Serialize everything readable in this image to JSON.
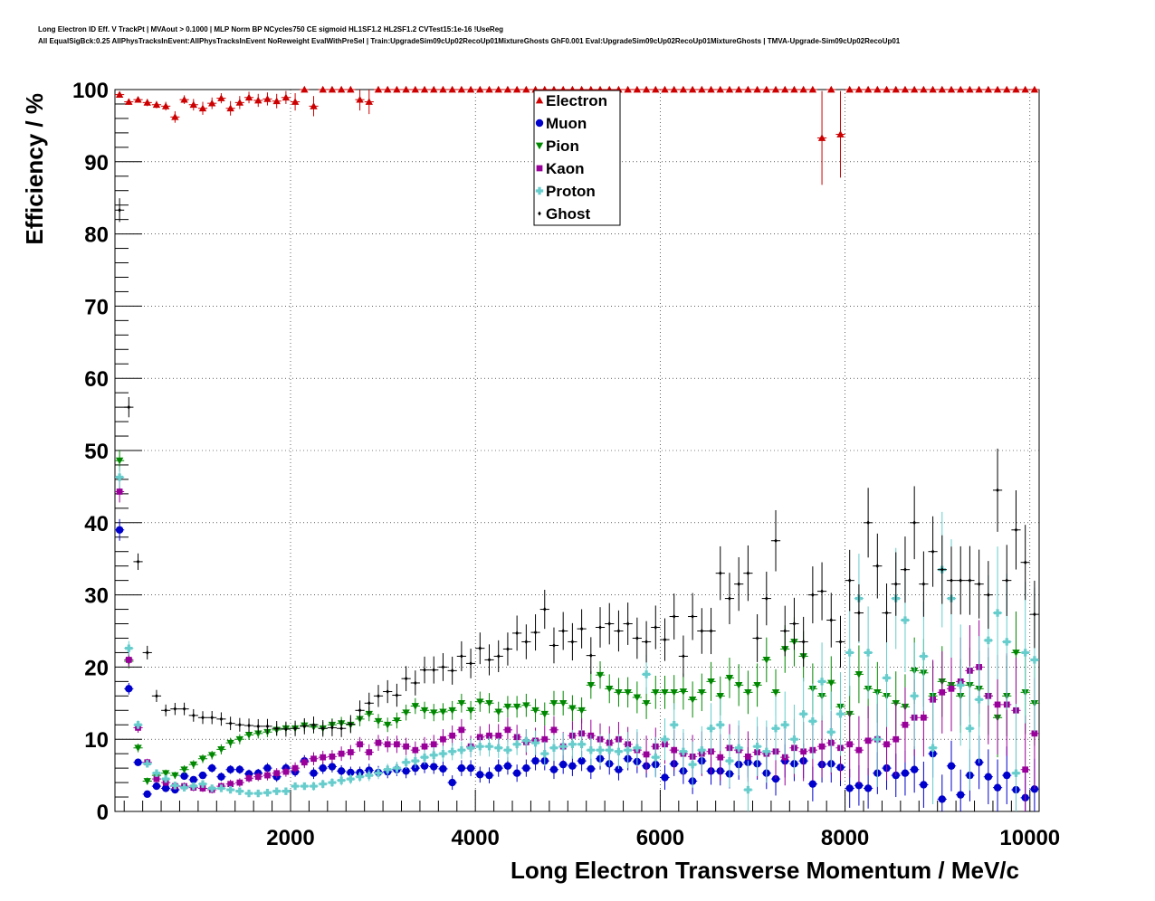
{
  "chart_data": {
    "type": "scatter",
    "title_lines": [
      "Long Electron ID Eff. V TrackPt | MVAout > 0.1000 | MLP Norm BP NCycles750 CE sigmoid HL1SF1.2 HL2SF1.2 CVTest15:1e-16 !UseReg",
      "All EqualSigBck:0.25 AllPhysTracksInEvent:AllPhysTracksInEvent NoReweight EvalWithPreSel | Train:UpgradeSim09cUp02RecoUp01MixtureGhosts GhF0.001 Eval:UpgradeSim09cUp02RecoUp01MixtureGhosts | TMVA-Upgrade-Sim09cUp02RecoUp01"
    ],
    "xlabel": "Long Electron Transverse Momentum / MeV/c",
    "ylabel": "Efficiency / %",
    "xlim": [
      100,
      10100
    ],
    "ylim": [
      0,
      100
    ],
    "x_ticks": [
      "2000",
      "4000",
      "6000",
      "8000",
      "10000"
    ],
    "y_ticks": [
      "0",
      "10",
      "20",
      "30",
      "40",
      "50",
      "60",
      "70",
      "80",
      "90",
      "100"
    ],
    "grid": true,
    "legend_position": "top-center",
    "x": [
      150,
      250,
      350,
      450,
      550,
      650,
      750,
      850,
      950,
      1050,
      1150,
      1250,
      1350,
      1450,
      1550,
      1650,
      1750,
      1850,
      1950,
      2050,
      2150,
      2250,
      2350,
      2450,
      2550,
      2650,
      2750,
      2850,
      2950,
      3050,
      3150,
      3250,
      3350,
      3450,
      3550,
      3650,
      3750,
      3850,
      3950,
      4050,
      4150,
      4250,
      4350,
      4450,
      4550,
      4650,
      4750,
      4850,
      4950,
      5050,
      5150,
      5250,
      5350,
      5450,
      5550,
      5650,
      5750,
      5850,
      5950,
      6050,
      6150,
      6250,
      6350,
      6450,
      6550,
      6650,
      6750,
      6850,
      6950,
      7050,
      7150,
      7250,
      7350,
      7450,
      7550,
      7650,
      7750,
      7850,
      7950,
      8050,
      8150,
      8250,
      8350,
      8450,
      8550,
      8650,
      8750,
      8850,
      8950,
      9050,
      9150,
      9250,
      9350,
      9450,
      9550,
      9650,
      9750,
      9850,
      9950,
      10050
    ],
    "series": [
      {
        "name": "Electron",
        "color": "#cc0000",
        "marker": "triangle-up",
        "values": [
          99.3,
          98.3,
          98.6,
          98.2,
          97.9,
          97.7,
          96.2,
          98.6,
          97.9,
          97.4,
          98.1,
          98.8,
          97.4,
          98.2,
          98.9,
          98.5,
          98.7,
          98.4,
          98.9,
          98.3,
          100,
          97.7,
          100,
          100,
          100,
          100,
          98.6,
          98.3,
          100,
          100,
          100,
          100,
          100,
          100,
          100,
          100,
          100,
          100,
          100,
          100,
          100,
          100,
          100,
          100,
          100,
          100,
          100,
          100,
          100,
          100,
          100,
          100,
          100,
          100,
          100,
          100,
          100,
          100,
          100,
          100,
          100,
          100,
          100,
          100,
          100,
          100,
          100,
          100,
          100,
          100,
          100,
          100,
          100,
          100,
          100,
          100,
          93.3,
          100,
          93.8,
          100,
          100,
          100,
          100,
          100,
          100,
          100,
          100,
          100,
          100,
          100,
          100,
          100,
          100,
          100,
          100,
          100,
          100,
          100,
          100,
          100
        ],
        "errors": [
          0.3,
          0.4,
          0.4,
          0.5,
          0.5,
          0.6,
          0.8,
          0.6,
          0.8,
          0.9,
          0.8,
          0.7,
          1.0,
          0.9,
          0.8,
          0.9,
          0.9,
          1.0,
          0.9,
          1.2,
          0,
          1.4,
          0,
          0,
          0,
          0,
          1.5,
          1.7,
          0,
          0,
          0,
          0,
          0,
          0,
          0,
          0,
          0,
          0,
          0,
          0,
          0,
          0,
          0,
          0,
          0,
          0,
          0,
          0,
          0,
          0,
          0,
          0,
          0,
          0,
          0,
          0,
          0,
          0,
          0,
          0,
          0,
          0,
          0,
          0,
          0,
          0,
          0,
          0,
          0,
          0,
          0,
          0,
          0,
          0,
          0,
          0,
          6.5,
          0,
          6.0,
          0,
          0,
          0,
          0,
          0,
          0,
          0,
          0,
          0,
          0,
          0,
          0,
          0,
          0,
          0,
          0,
          0,
          0,
          0,
          0,
          0
        ]
      },
      {
        "name": "Muon",
        "color": "#0000cc",
        "marker": "circle",
        "values": [
          39,
          17,
          6.8,
          2.4,
          3.5,
          3.2,
          3.0,
          4.9,
          4.4,
          5.0,
          6.0,
          4.8,
          5.8,
          5.8,
          5.2,
          5.3,
          6.0,
          4.8,
          6.0,
          5.5,
          7.0,
          5.3,
          6.0,
          6.2,
          5.6,
          5.4,
          5.4,
          5.7,
          5.4,
          5.5,
          5.8,
          5.6,
          6.0,
          6.3,
          6.2,
          5.9,
          4.0,
          6.0,
          6.0,
          5.1,
          5.0,
          6.0,
          6.3,
          5.3,
          6.0,
          7.0,
          7.0,
          5.8,
          6.5,
          6.3,
          7.0,
          5.9,
          7.3,
          6.6,
          5.8,
          7.3,
          6.9,
          6.3,
          6.5,
          4.7,
          6.6,
          5.6,
          4.2,
          7.0,
          5.6,
          5.6,
          5.2,
          6.5,
          6.8,
          6.6,
          5.3,
          4.5,
          7.0,
          6.6,
          7.0,
          3.8,
          6.5,
          6.6,
          6.1,
          3.2,
          3.6,
          3.2,
          5.3,
          6.0,
          5.0,
          5.3,
          5.8,
          3.7,
          8.0,
          1.7,
          6.3,
          2.3,
          5.0,
          6.8,
          4.8,
          3.3,
          5.0,
          3.0,
          1.9,
          3.1
        ],
        "errors": [
          1.5,
          0.8,
          0.5,
          0.4,
          0.4,
          0.4,
          0.4,
          0.5,
          0.5,
          0.5,
          0.6,
          0.6,
          0.6,
          0.6,
          0.6,
          0.6,
          0.7,
          0.7,
          0.7,
          0.7,
          0.8,
          0.8,
          0.8,
          0.8,
          0.8,
          0.8,
          0.8,
          0.9,
          0.9,
          0.9,
          0.9,
          1.0,
          1.0,
          1.0,
          1.0,
          1.0,
          1.0,
          1.1,
          1.1,
          1.1,
          1.1,
          1.2,
          1.2,
          1.2,
          1.2,
          1.3,
          1.3,
          1.3,
          1.3,
          1.4,
          1.4,
          1.4,
          1.5,
          1.5,
          1.5,
          1.6,
          1.6,
          1.6,
          1.7,
          1.7,
          1.7,
          1.8,
          1.8,
          1.9,
          1.9,
          2.0,
          2.0,
          2.1,
          2.1,
          2.2,
          2.2,
          2.3,
          2.3,
          2.4,
          2.4,
          2.4,
          2.5,
          2.6,
          2.6,
          2.7,
          2.8,
          2.8,
          2.9,
          3.0,
          3.0,
          3.1,
          3.2,
          3.2,
          3.3,
          3.4,
          3.5,
          3.5,
          3.6,
          3.7,
          3.8,
          3.9,
          4.0,
          4.0,
          4.1,
          4.2
        ]
      },
      {
        "name": "Pion",
        "color": "#008800",
        "marker": "triangle-down",
        "values": [
          48.6,
          20.8,
          8.8,
          4.2,
          5.0,
          5.3,
          5.0,
          5.8,
          6.5,
          7.3,
          7.8,
          8.6,
          9.5,
          10.0,
          10.6,
          10.8,
          11.0,
          11.3,
          11.5,
          11.5,
          11.9,
          11.7,
          11.5,
          12.0,
          12.2,
          12.0,
          12.8,
          13.5,
          12.5,
          12.0,
          12.6,
          13.7,
          14.6,
          14.0,
          13.7,
          13.8,
          14.0,
          15.0,
          14.0,
          15.2,
          15.0,
          13.8,
          14.5,
          14.5,
          14.7,
          14.0,
          13.5,
          15.0,
          15.0,
          14.3,
          14.0,
          17.5,
          18.9,
          17.0,
          16.5,
          16.5,
          15.8,
          15.0,
          16.5,
          16.5,
          16.5,
          16.6,
          15.5,
          16.5,
          18.0,
          16.0,
          18.5,
          17.5,
          16.5,
          17.5,
          21.0,
          16.5,
          22.5,
          23.5,
          21.5,
          17.0,
          16.0,
          17.8,
          14.5,
          13.5,
          19.0,
          17.0,
          16.5,
          16.0,
          15.0,
          14.5,
          19.5,
          19.2,
          16.0,
          18.0,
          17.5,
          16.0,
          17.5,
          17.0,
          16.0,
          13.0,
          16.0,
          22.0,
          16.5,
          15.0
        ],
        "errors": [
          1.5,
          1.0,
          0.6,
          0.5,
          0.5,
          0.5,
          0.5,
          0.6,
          0.6,
          0.6,
          0.6,
          0.7,
          0.7,
          0.7,
          0.7,
          0.7,
          0.7,
          0.8,
          0.8,
          0.8,
          0.8,
          0.9,
          0.9,
          0.9,
          0.9,
          1.0,
          1.0,
          1.0,
          1.0,
          1.0,
          1.1,
          1.1,
          1.1,
          1.2,
          1.2,
          1.2,
          1.3,
          1.3,
          1.3,
          1.4,
          1.4,
          1.4,
          1.5,
          1.5,
          1.6,
          1.6,
          1.6,
          1.7,
          1.7,
          1.8,
          1.8,
          1.9,
          1.9,
          2.0,
          2.0,
          2.1,
          2.2,
          2.2,
          2.3,
          2.3,
          2.4,
          2.5,
          2.5,
          2.6,
          2.7,
          2.7,
          2.8,
          2.9,
          3.0,
          3.0,
          3.1,
          3.2,
          3.3,
          3.4,
          3.5,
          3.5,
          3.6,
          3.7,
          3.8,
          3.9,
          4.0,
          4.1,
          4.2,
          4.3,
          4.4,
          4.5,
          4.6,
          4.7,
          4.8,
          4.9,
          5.0,
          5.1,
          5.2,
          5.3,
          5.4,
          5.5,
          5.6,
          5.7,
          5.8,
          5.9
        ]
      },
      {
        "name": "Kaon",
        "color": "#990099",
        "marker": "square",
        "values": [
          44.3,
          21.0,
          11.6,
          6.8,
          4.5,
          4.0,
          3.5,
          3.5,
          3.3,
          3.2,
          3.0,
          3.5,
          3.8,
          4.0,
          4.6,
          4.8,
          5.0,
          5.3,
          5.5,
          6.0,
          6.8,
          7.3,
          7.5,
          7.6,
          8.0,
          8.2,
          9.3,
          8.2,
          9.5,
          9.3,
          9.3,
          9.0,
          8.5,
          9.0,
          9.3,
          10.0,
          10.5,
          11.3,
          9.0,
          10.3,
          10.5,
          10.5,
          11.3,
          10.3,
          9.6,
          9.8,
          10.0,
          11.3,
          9.0,
          10.5,
          10.8,
          10.5,
          10.0,
          9.5,
          10.0,
          9.3,
          8.5,
          7.9,
          9.0,
          9.3,
          8.5,
          8.0,
          7.6,
          8.0,
          8.3,
          7.5,
          8.8,
          8.5,
          7.6,
          8.2,
          8.0,
          8.3,
          7.5,
          8.8,
          8.3,
          8.5,
          9.0,
          9.5,
          8.8,
          9.3,
          8.5,
          9.8,
          10.0,
          9.3,
          10.0,
          12.0,
          13.0,
          13.0,
          15.5,
          16.5,
          17.0,
          18.0,
          19.5,
          20.0,
          16.0,
          14.8,
          14.8,
          14.0,
          5.8,
          10.8
        ],
        "errors": [
          1.5,
          1.0,
          0.7,
          0.5,
          0.5,
          0.5,
          0.5,
          0.5,
          0.5,
          0.5,
          0.5,
          0.5,
          0.6,
          0.6,
          0.6,
          0.6,
          0.7,
          0.7,
          0.7,
          0.8,
          0.8,
          0.9,
          0.9,
          0.9,
          1.0,
          1.0,
          1.0,
          1.1,
          1.1,
          1.1,
          1.2,
          1.2,
          1.2,
          1.3,
          1.3,
          1.4,
          1.4,
          1.5,
          1.5,
          1.5,
          1.6,
          1.6,
          1.7,
          1.7,
          1.8,
          1.8,
          1.9,
          1.9,
          2.0,
          2.0,
          2.1,
          2.2,
          2.2,
          2.3,
          2.4,
          2.4,
          2.5,
          2.6,
          2.6,
          2.7,
          2.8,
          2.9,
          3.0,
          3.1,
          3.1,
          3.2,
          3.3,
          3.4,
          3.5,
          3.6,
          3.7,
          3.8,
          3.9,
          4.0,
          4.1,
          4.2,
          4.3,
          4.4,
          4.5,
          4.6,
          4.7,
          4.8,
          4.9,
          5.0,
          5.1,
          5.2,
          5.3,
          5.4,
          5.5,
          5.7,
          5.9,
          6.1,
          6.3,
          6.5,
          6.7,
          6.9,
          7.1,
          7.3,
          7.5,
          7.7
        ]
      },
      {
        "name": "Proton",
        "color": "#66cccc",
        "marker": "cross",
        "values": [
          46.3,
          22.6,
          12.0,
          6.6,
          5.3,
          4.5,
          3.6,
          3.3,
          3.5,
          3.8,
          3.2,
          3.2,
          3.0,
          2.8,
          2.5,
          2.5,
          2.6,
          2.8,
          2.8,
          3.5,
          3.5,
          3.5,
          3.8,
          4.0,
          4.3,
          4.5,
          4.8,
          5.0,
          5.3,
          5.8,
          6.0,
          6.8,
          7.0,
          7.5,
          7.8,
          8.0,
          8.3,
          8.5,
          8.8,
          9.0,
          9.0,
          8.8,
          8.5,
          9.3,
          9.8,
          9.5,
          8.0,
          8.8,
          9.0,
          9.3,
          9.3,
          8.5,
          8.5,
          8.5,
          8.3,
          8.5,
          8.8,
          19.0,
          7.5,
          10.0,
          12.0,
          8.3,
          6.5,
          8.5,
          11.5,
          12.0,
          7.0,
          8.8,
          3.0,
          9.0,
          8.3,
          11.5,
          12.0,
          10.0,
          13.5,
          12.5,
          18.0,
          11.0,
          13.5,
          22.0,
          29.5,
          22.0,
          10.0,
          18.5,
          29.5,
          26.5,
          16.0,
          21.5,
          8.8,
          33.5,
          29.5,
          17.5,
          11.5,
          15.5,
          23.7,
          27.5,
          23.5,
          5.3,
          22.0,
          21.0
        ],
        "errors": [
          1.5,
          1.0,
          0.6,
          0.5,
          0.5,
          0.5,
          0.4,
          0.4,
          0.4,
          0.4,
          0.4,
          0.4,
          0.4,
          0.4,
          0.4,
          0.4,
          0.4,
          0.5,
          0.5,
          0.5,
          0.5,
          0.6,
          0.6,
          0.6,
          0.7,
          0.7,
          0.7,
          0.8,
          0.8,
          0.8,
          0.9,
          0.9,
          1.0,
          1.0,
          1.1,
          1.1,
          1.2,
          1.2,
          1.3,
          1.3,
          1.4,
          1.4,
          1.5,
          1.5,
          1.6,
          1.7,
          1.7,
          1.8,
          1.9,
          2.0,
          2.0,
          2.1,
          2.2,
          2.3,
          2.4,
          2.5,
          2.6,
          2.7,
          2.8,
          2.9,
          3.0,
          3.1,
          3.2,
          3.3,
          3.5,
          3.6,
          3.7,
          3.8,
          4.0,
          4.1,
          4.3,
          4.4,
          4.6,
          4.8,
          5.0,
          5.2,
          5.4,
          5.6,
          5.8,
          6.0,
          6.2,
          6.4,
          6.6,
          6.8,
          7.0,
          7.2,
          7.4,
          7.6,
          7.8,
          8.0,
          8.2,
          8.4,
          8.6,
          8.8,
          9.0,
          9.2,
          9.4,
          9.6,
          9.8,
          10.0
        ]
      },
      {
        "name": "Ghost",
        "color": "#000000",
        "marker": "diamond",
        "values": [
          83.3,
          56.0,
          34.6,
          22.0,
          16.0,
          14.0,
          14.2,
          14.2,
          13.3,
          13.0,
          13.0,
          12.8,
          12.2,
          12.0,
          11.9,
          11.8,
          11.8,
          11.5,
          11.4,
          11.5,
          11.8,
          12.0,
          11.5,
          11.6,
          11.5,
          12.1,
          14.0,
          15.0,
          16.0,
          16.6,
          16.1,
          18.4,
          17.8,
          19.6,
          19.6,
          20.0,
          19.5,
          21.5,
          20.5,
          22.6,
          21.0,
          21.5,
          22.5,
          24.7,
          23.5,
          24.8,
          28.0,
          23.0,
          25.0,
          23.5,
          25.3,
          21.6,
          25.5,
          26.0,
          25.0,
          26.0,
          24.0,
          23.5,
          25.5,
          23.8,
          27.0,
          21.5,
          27.0,
          25.0,
          25.0,
          33.0,
          29.5,
          31.5,
          33.0,
          24.0,
          29.5,
          37.5,
          25.0,
          26.0,
          23.5,
          30.0,
          30.5,
          26.5,
          23.5,
          32.0,
          27.5,
          40.0,
          34.0,
          27.5,
          31.5,
          33.5,
          40.0,
          31.5,
          36.0,
          33.5,
          32.0,
          32.0,
          32.0,
          31.5,
          30.0,
          44.5,
          32.0,
          39.0,
          34.5,
          27.3
        ]
      }
    ]
  }
}
